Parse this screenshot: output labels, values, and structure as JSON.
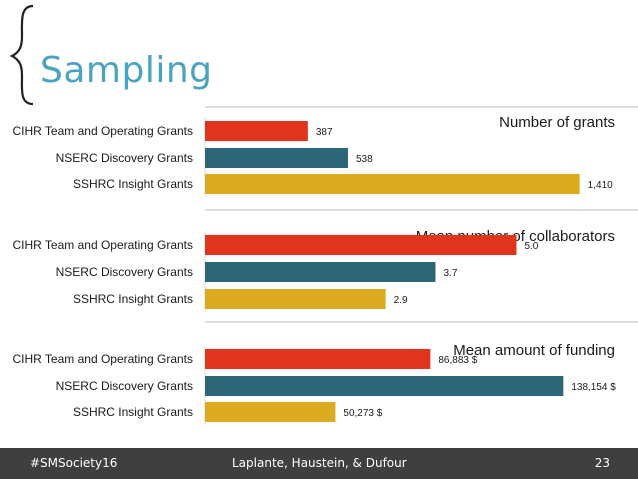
{
  "slide": {
    "title": "Sampling",
    "footer": {
      "hashtag": "#SMSociety16",
      "authors": "Laplante, Haustein, & Dufour",
      "page": "23"
    }
  },
  "colors": {
    "title": "#4aa3c0",
    "footer_bg": "#3f3f3f",
    "divider": "#bfbfbf"
  },
  "chart_data": [
    {
      "type": "bar",
      "title": "Number of grants",
      "categories": [
        "CIHR Team and Operating Grants",
        "NSERC Discovery Grants",
        "SSHRC Insight Grants"
      ],
      "values": [
        387,
        538,
        1410
      ],
      "value_labels": [
        "387",
        "538",
        "1,410"
      ],
      "colors": [
        "#e0341f",
        "#2d6677",
        "#ddab1f"
      ],
      "xlim": [
        0,
        1430
      ]
    },
    {
      "type": "bar",
      "title": "Mean number of collaborators",
      "categories": [
        "CIHR Team and Operating Grants",
        "NSERC Discovery Grants",
        "SSHRC Insight Grants"
      ],
      "values": [
        5.0,
        3.7,
        2.9
      ],
      "value_labels": [
        "5.0",
        "3.7",
        "2.9"
      ],
      "colors": [
        "#e0341f",
        "#2d6677",
        "#ddab1f"
      ],
      "xlim": [
        0,
        6.1
      ]
    },
    {
      "type": "bar",
      "title": "Mean amount of funding",
      "categories": [
        "CIHR Team and Operating Grants",
        "NSERC Discovery Grants",
        "SSHRC Insight Grants"
      ],
      "values": [
        86883,
        138154,
        50273
      ],
      "value_labels": [
        "86,883 $",
        "138,154 $",
        "50,273 $"
      ],
      "colors": [
        "#e0341f",
        "#2d6677",
        "#ddab1f"
      ],
      "xlim": [
        0,
        146500
      ]
    }
  ]
}
